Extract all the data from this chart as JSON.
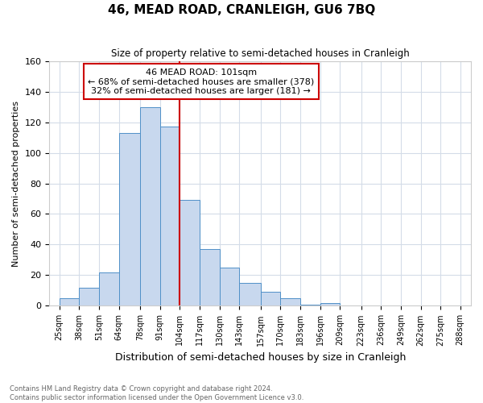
{
  "title": "46, MEAD ROAD, CRANLEIGH, GU6 7BQ",
  "subtitle": "Size of property relative to semi-detached houses in Cranleigh",
  "xlabel": "Distribution of semi-detached houses by size in Cranleigh",
  "ylabel": "Number of semi-detached properties",
  "annotation_line1": "46 MEAD ROAD: 101sqm",
  "annotation_line2": "← 68% of semi-detached houses are smaller (378)",
  "annotation_line3": "32% of semi-detached houses are larger (181) →",
  "footnote1": "Contains HM Land Registry data © Crown copyright and database right 2024.",
  "footnote2": "Contains public sector information licensed under the Open Government Licence v3.0.",
  "property_size": 101,
  "bin_edges": [
    25,
    38,
    51,
    64,
    78,
    91,
    104,
    117,
    130,
    143,
    157,
    170,
    183,
    196,
    209,
    223,
    236,
    249,
    262,
    275,
    288
  ],
  "bar_heights": [
    5,
    12,
    22,
    113,
    130,
    117,
    69,
    37,
    25,
    15,
    9,
    5,
    1,
    2,
    0,
    0,
    0,
    0,
    0,
    0
  ],
  "bar_color": "#c8d8ee",
  "bar_edge_color": "#5090c8",
  "redline_x": 104,
  "redline_color": "#cc0000",
  "annotation_box_color": "#cc0000",
  "grid_color": "#d4dce8",
  "background_color": "#ffffff",
  "ylim": [
    0,
    160
  ],
  "yticks": [
    0,
    20,
    40,
    60,
    80,
    100,
    120,
    140,
    160
  ],
  "x_tick_labels": [
    "25sqm",
    "38sqm",
    "51sqm",
    "64sqm",
    "78sqm",
    "91sqm",
    "104sqm",
    "117sqm",
    "130sqm",
    "143sqm",
    "157sqm",
    "170sqm",
    "183sqm",
    "196sqm",
    "209sqm",
    "223sqm",
    "236sqm",
    "249sqm",
    "262sqm",
    "275sqm",
    "288sqm"
  ],
  "x_tick_positions": [
    25,
    38,
    51,
    64,
    78,
    91,
    104,
    117,
    130,
    143,
    157,
    170,
    183,
    196,
    209,
    223,
    236,
    249,
    262,
    275,
    288
  ]
}
